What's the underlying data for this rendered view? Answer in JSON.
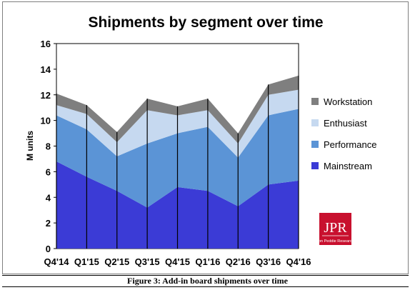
{
  "chart_data": {
    "type": "area",
    "stacked": true,
    "title": "Shipments by segment over time",
    "ylabel": "M units",
    "xlabel": "",
    "ylim": [
      0,
      16
    ],
    "yticks": [
      0,
      2,
      4,
      6,
      8,
      10,
      12,
      14,
      16
    ],
    "grid": false,
    "legend_position": "right",
    "categories": [
      "Q4'14",
      "Q1'15",
      "Q2'15",
      "Q3'15",
      "Q4'15",
      "Q1'16",
      "Q2'16",
      "Q3'16",
      "Q4'16"
    ],
    "series": [
      {
        "name": "Mainstream",
        "color": "#3b3bd6",
        "values": [
          6.8,
          5.6,
          4.5,
          3.2,
          4.8,
          4.5,
          3.3,
          5.0,
          5.3
        ]
      },
      {
        "name": "Performance",
        "color": "#5b94d6",
        "values": [
          3.6,
          3.7,
          2.7,
          5.0,
          4.2,
          5.0,
          3.8,
          5.4,
          5.6
        ]
      },
      {
        "name": "Enthusiast",
        "color": "#c6d9f0",
        "values": [
          0.8,
          1.2,
          1.1,
          2.6,
          1.4,
          1.3,
          1.1,
          1.6,
          1.5
        ]
      },
      {
        "name": "Workstation",
        "color": "#7f7f7f",
        "values": [
          0.9,
          0.7,
          0.8,
          0.9,
          0.7,
          0.9,
          0.8,
          0.8,
          1.1
        ]
      }
    ]
  },
  "logo": {
    "text": "JPR",
    "subtext": "Jon Peddie Research",
    "color": "#c8102e"
  },
  "caption": "Figure 3: Add-in board shipments over time"
}
